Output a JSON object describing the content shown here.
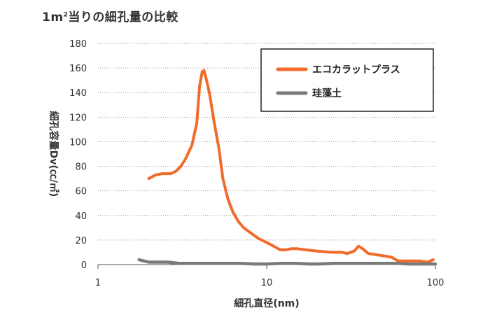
{
  "title": {
    "prefix": "1m",
    "sup": "2",
    "suffix": "当りの細孔量の比較"
  },
  "colors": {
    "eco": "#f26a2a",
    "diatom": "#7a7a7a",
    "grid": "#9a9a9a",
    "axis": "#555555"
  },
  "chart_data": {
    "type": "line",
    "title": "1m²当りの細孔量の比較",
    "xlabel": "細孔直径(nm)",
    "ylabel": "細孔容量Dv(㏄/㎡)",
    "xscale": "log",
    "xlim": [
      1,
      100
    ],
    "ylim": [
      0,
      180
    ],
    "xticks": [
      1,
      10,
      100
    ],
    "xtick_labels": [
      "1",
      "10",
      "100"
    ],
    "yticks": [
      0,
      20,
      40,
      60,
      80,
      100,
      120,
      140,
      160,
      180
    ],
    "grid": "horizontal dotted",
    "legend_position": "top-right",
    "series": [
      {
        "name": "エコカラットプラス",
        "color": "#f26a2a",
        "x": [
          2.0,
          2.2,
          2.4,
          2.7,
          2.9,
          3.1,
          3.3,
          3.6,
          3.85,
          4.0,
          4.15,
          4.25,
          4.4,
          4.6,
          4.85,
          5.2,
          5.5,
          5.9,
          6.3,
          6.8,
          7.3,
          8.0,
          9.0,
          10.0,
          11.0,
          12.0,
          13.0,
          14.0,
          15.0,
          17.0,
          20.0,
          24.0,
          28.0,
          30.0,
          33.0,
          35.0,
          37.0,
          40.0,
          45.0,
          50.0,
          55.0,
          60.0,
          70.0,
          80.0,
          90.0,
          97.0
        ],
        "y": [
          70,
          73,
          74,
          74,
          76,
          80,
          86,
          97,
          115,
          145,
          157,
          158,
          150,
          138,
          118,
          95,
          70,
          53,
          43,
          35,
          30,
          26,
          21,
          18,
          15,
          12,
          12,
          13,
          13,
          12,
          11,
          10,
          10,
          9,
          11,
          15,
          13,
          9,
          8,
          7,
          6,
          3,
          3,
          3,
          2,
          4
        ]
      },
      {
        "name": "珪藻土",
        "color": "#7a7a7a",
        "x": [
          1.75,
          2.0,
          2.3,
          2.6,
          3.0,
          4.0,
          5.0,
          7.0,
          8.5,
          10.0,
          12.0,
          15.0,
          18.0,
          20.0,
          25.0,
          30.0,
          40.0,
          50.0,
          60.0,
          70.0,
          80.0,
          100.0
        ],
        "y": [
          4,
          2,
          2,
          2,
          1,
          1,
          1,
          1,
          0.5,
          0.5,
          1,
          1,
          0.5,
          0.5,
          1,
          1,
          1,
          1,
          1,
          0.5,
          0.5,
          0.5
        ]
      }
    ]
  }
}
